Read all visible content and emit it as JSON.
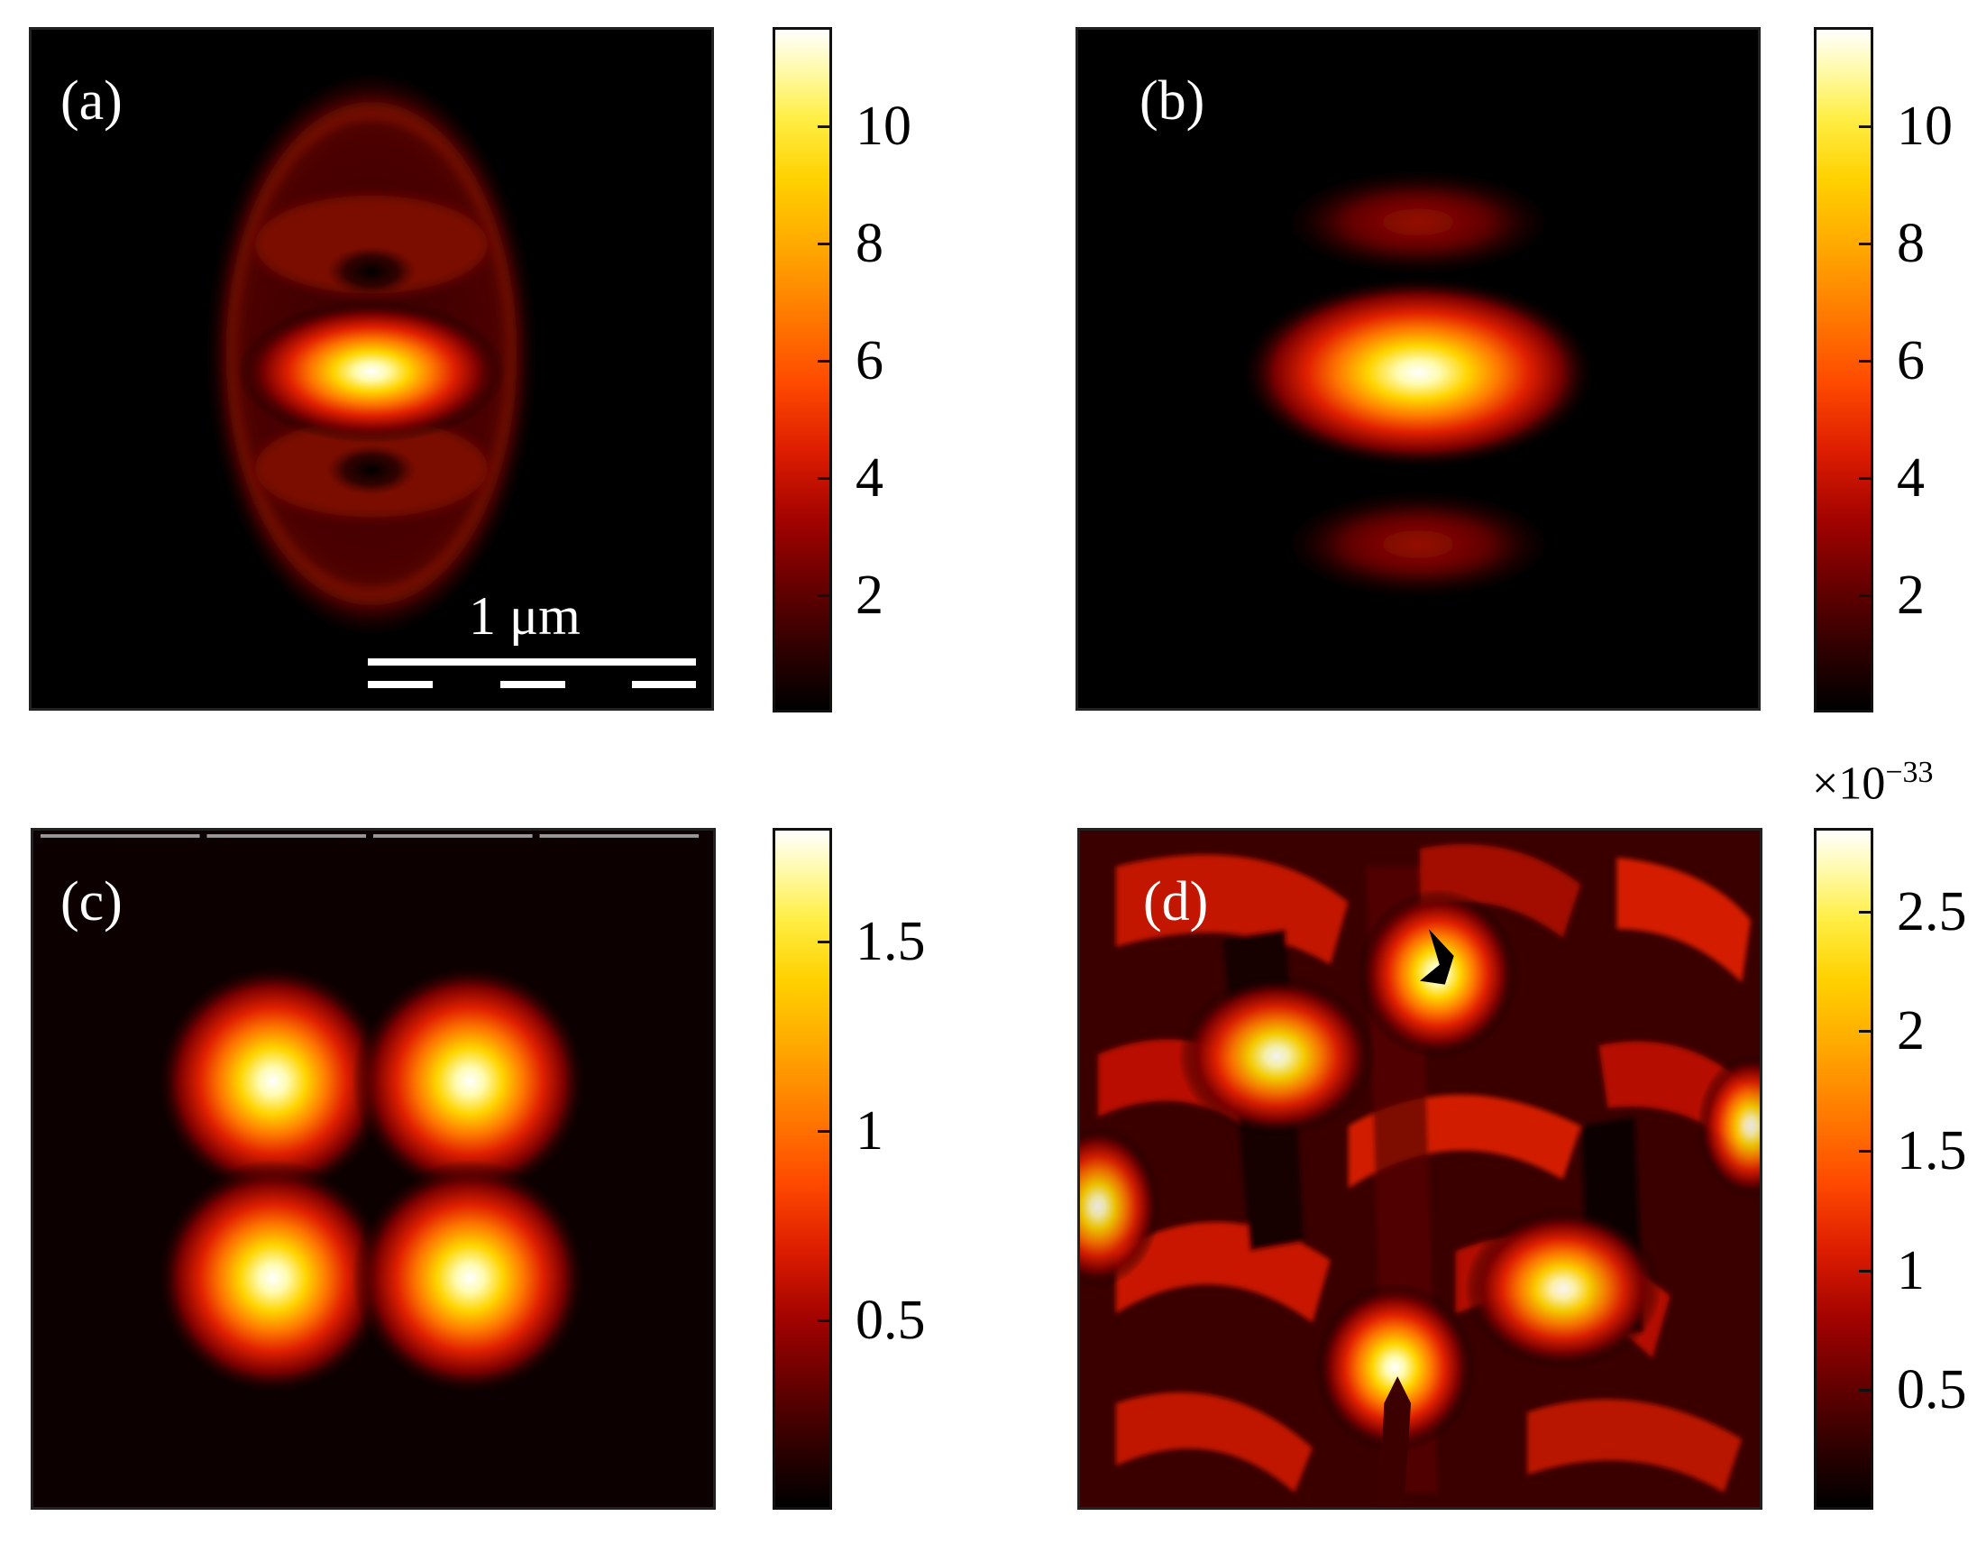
{
  "chart_data": [
    {
      "type": "heatmap",
      "panel_label": "(a)",
      "scale_bar_label": "1 μm",
      "colormap": "hot",
      "colorbar": {
        "range": [
          0,
          11.7
        ],
        "ticks": [
          2,
          4,
          6,
          8,
          10
        ],
        "tick_labels": [
          "2",
          "4",
          "6",
          "8",
          "10"
        ]
      },
      "peak_value": 11.5
    },
    {
      "type": "heatmap",
      "panel_label": "(b)",
      "colormap": "hot",
      "colorbar": {
        "range": [
          0,
          11.7
        ],
        "ticks": [
          2,
          4,
          6,
          8,
          10
        ],
        "tick_labels": [
          "2",
          "4",
          "6",
          "8",
          "10"
        ]
      },
      "peak_value": 11.5
    },
    {
      "type": "heatmap",
      "panel_label": "(c)",
      "colormap": "hot",
      "colorbar": {
        "range": [
          0,
          1.8
        ],
        "ticks": [
          0.5,
          1,
          1.5
        ],
        "tick_labels": [
          "0.5",
          "1",
          "1.5"
        ]
      },
      "peak_value": 1.75
    },
    {
      "type": "heatmap",
      "panel_label": "(d)",
      "colormap": "hot",
      "colorbar": {
        "range": [
          0,
          2.85
        ],
        "ticks": [
          0.5,
          1,
          1.5,
          2,
          2.5
        ],
        "tick_labels": [
          "0.5",
          "1",
          "1.5",
          "2",
          "2.5"
        ],
        "multiplier": "×10",
        "multiplier_exponent": "−33"
      },
      "peak_value": 2.8
    }
  ]
}
